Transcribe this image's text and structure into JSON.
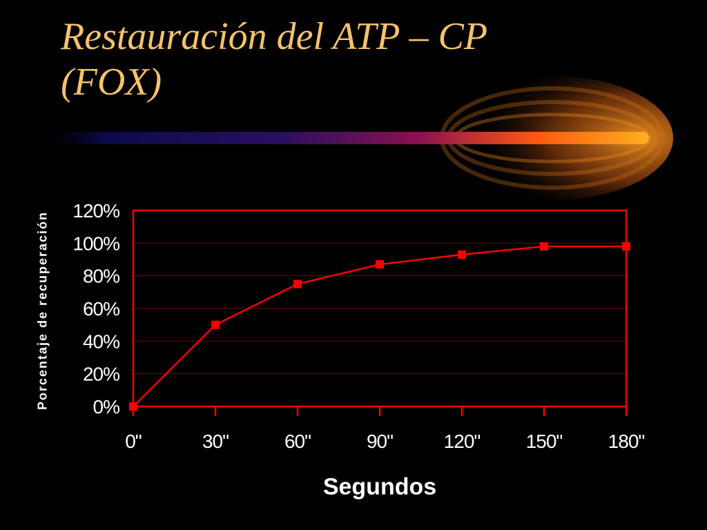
{
  "colors": {
    "background": "#000000",
    "title": "#F5C26B",
    "text": "#FFFFFF",
    "axis": "#FF0000",
    "grid": "#7A0000",
    "series": "#FF0000"
  },
  "slide": {
    "title_line1": "Restauración del ATP – CP",
    "title_line2": "(FOX)"
  },
  "chart_data": {
    "type": "line",
    "title": "",
    "xlabel": "Segundos",
    "ylabel": "Porcentaje de recuperación",
    "categories": [
      "0\"",
      "30\"",
      "60\"",
      "90\"",
      "120\"",
      "150\"",
      "180\""
    ],
    "series": [
      {
        "values": [
          0,
          50,
          75,
          87,
          93,
          98,
          98
        ]
      }
    ],
    "yticks": [
      "0%",
      "20%",
      "40%",
      "60%",
      "80%",
      "100%",
      "120%"
    ],
    "ylim": [
      0,
      120
    ],
    "grid": true,
    "legend": "none"
  }
}
